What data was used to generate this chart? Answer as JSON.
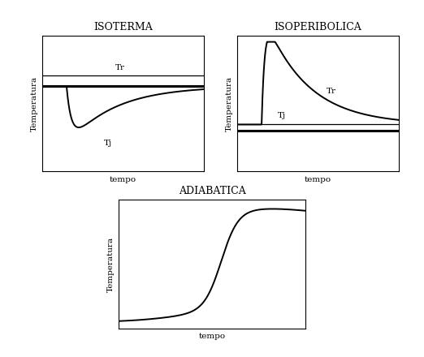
{
  "title_isoterma": "ISOTERMA",
  "title_isoperibolica": "ISOPERIBOLICA",
  "title_adiabatica": "ADIABATICA",
  "xlabel": "tempo",
  "ylabel": "Temperatura",
  "label_Tr": "Tr",
  "label_Tj": "Tj",
  "bg_color": "#ffffff",
  "line_color": "#000000",
  "line_width": 1.4,
  "font_size_title": 9,
  "font_size_axis": 7.5
}
